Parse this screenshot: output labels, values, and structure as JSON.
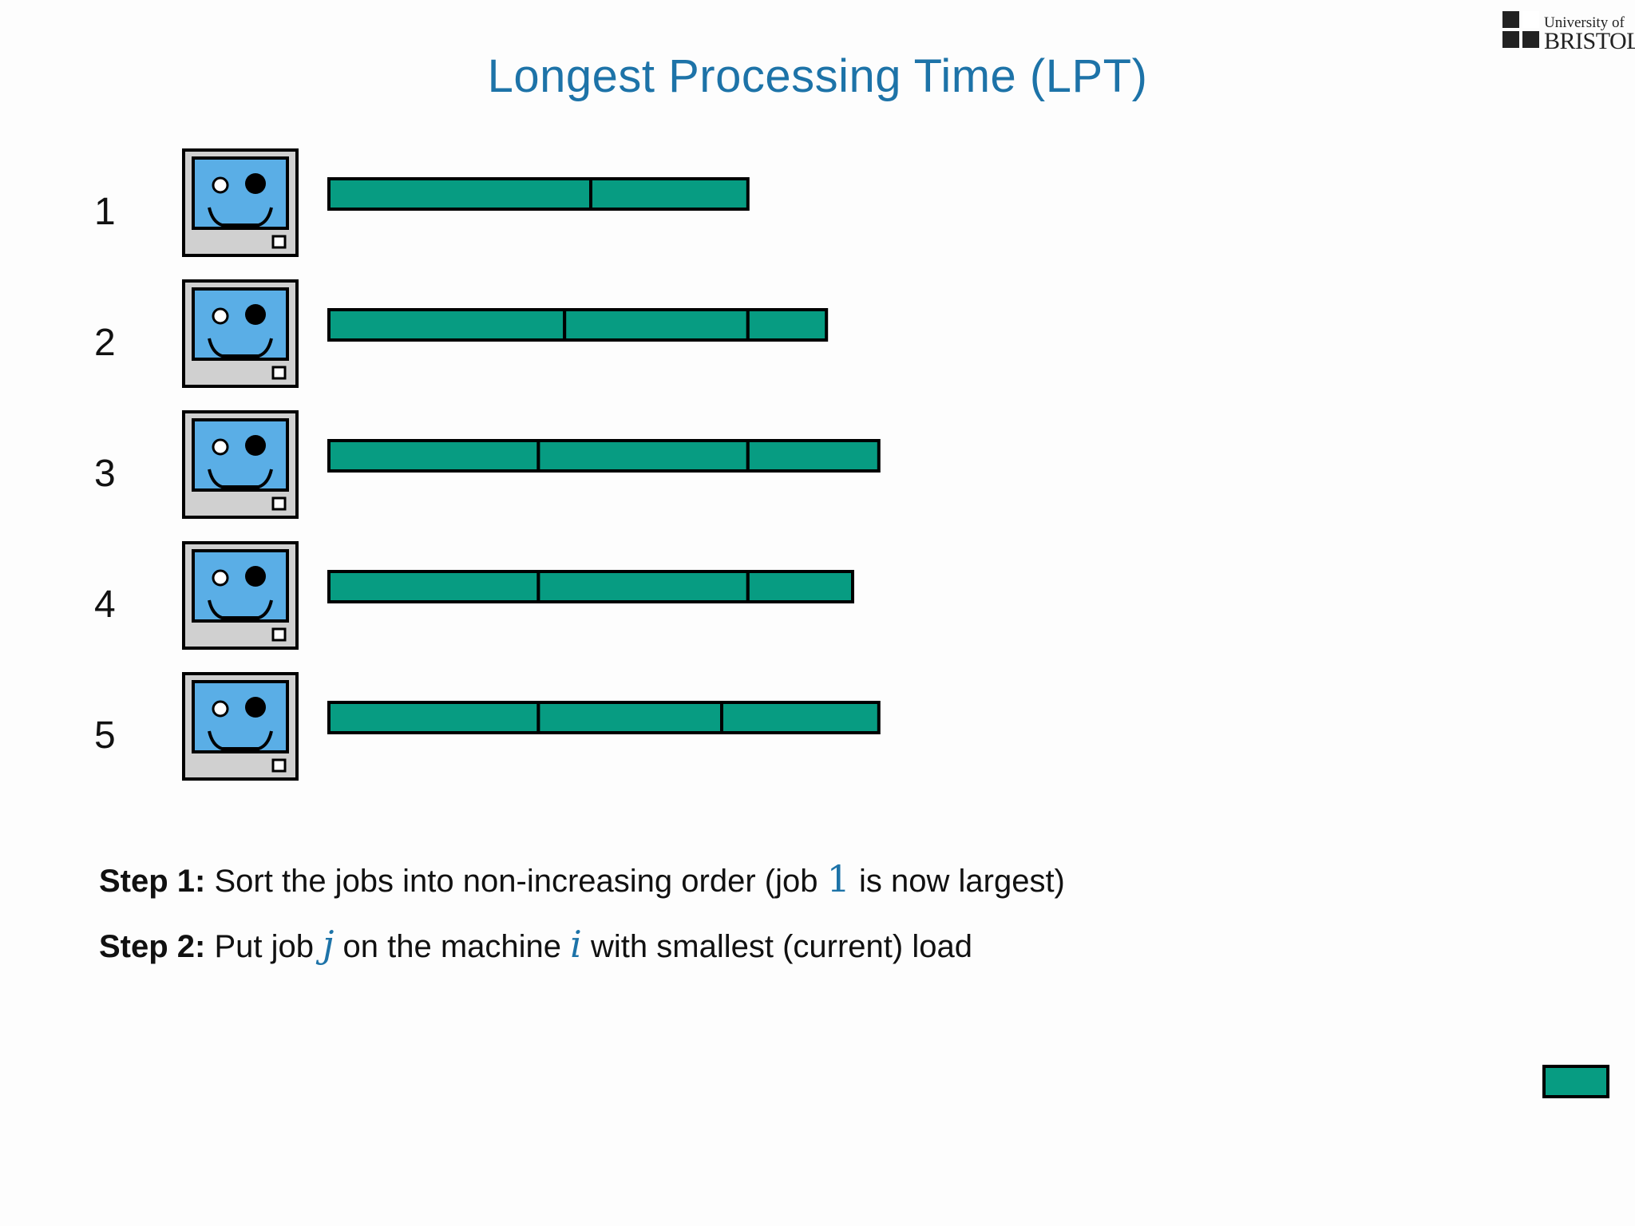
{
  "title": "Longest Processing Time (LPT)",
  "logo": {
    "line1": "University of",
    "line2": "BRISTOL"
  },
  "colors": {
    "title": "#1d73a8",
    "job_fill": "#079c82",
    "screen": "#5aaee6",
    "case": "#d0d0d0",
    "outline": "#000000",
    "math": "#1d73a8"
  },
  "machines": [
    {
      "label": "1",
      "jobs": [
        8,
        4.8
      ]
    },
    {
      "label": "2",
      "jobs": [
        7.2,
        5.6,
        2.4
      ]
    },
    {
      "label": "3",
      "jobs": [
        6.4,
        6.4,
        4
      ]
    },
    {
      "label": "4",
      "jobs": [
        6.4,
        6.4,
        3.2
      ]
    },
    {
      "label": "5",
      "jobs": [
        6.4,
        5.6,
        4.8
      ]
    }
  ],
  "steps": [
    {
      "label": "Step 1:",
      "text_before": "Sort the jobs into non-increasing order (job",
      "var1": "1",
      "text_after": "is now largest)"
    },
    {
      "label": "Step 2:",
      "text_before": "Put job",
      "var1": "j",
      "text_middle": "on the machine",
      "var2": "i",
      "text_after": "with smallest (current) load"
    }
  ]
}
